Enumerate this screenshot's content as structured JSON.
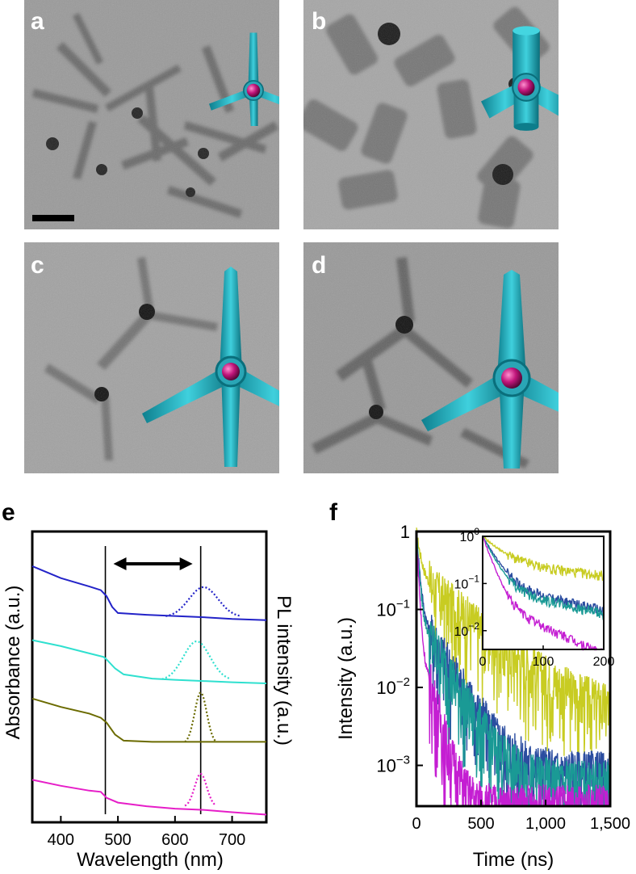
{
  "panel_labels": {
    "a": "a",
    "b": "b",
    "c": "c",
    "d": "d",
    "e": "e",
    "f": "f"
  },
  "colors": {
    "blue": "#2323c8",
    "cyan": "#2fe0cf",
    "olive": "#6b6b00",
    "magenta": "#e61ec8",
    "decay_yellow": "#c8cc22",
    "decay_teal": "#1a9a95",
    "decay_blue": "#2b4da0",
    "decay_magenta": "#c41ed2",
    "tetrapod": "#1fb5c5",
    "core": "#c0157a"
  },
  "icons": [
    "tetrapod-model-icon",
    "scale-bar-icon",
    "double-arrow-icon"
  ],
  "panel_e": {
    "ylabel_left": "Absorbance (a.u.)",
    "ylabel_right": "PL intensity (a.u.)",
    "xlabel": "Wavelength (nm)",
    "x_ticks": [
      "400",
      "500",
      "600",
      "700"
    ]
  },
  "panel_f": {
    "ylabel": "Intensity (a.u.)",
    "xlabel": "Time (ns)",
    "x_ticks": [
      "0",
      "500",
      "1,000",
      "1,500"
    ],
    "y_ticks": [
      {
        "base": "1",
        "exp": ""
      },
      {
        "base": "10",
        "exp": "−1"
      },
      {
        "base": "10",
        "exp": "−2"
      },
      {
        "base": "10",
        "exp": "−3"
      }
    ],
    "inset_x_ticks": [
      "0",
      "100",
      "200"
    ],
    "inset_y_ticks": [
      {
        "base": "10",
        "exp": "0"
      },
      {
        "base": "10",
        "exp": "−1"
      },
      {
        "base": "10",
        "exp": "−2"
      }
    ]
  },
  "chart_data": [
    {
      "type": "line",
      "xlabel": "Wavelength (nm)",
      "ylabel": "Absorbance (a.u.)",
      "ylabel_right": "PL intensity (a.u.)",
      "xlim": [
        350,
        760
      ],
      "x_ticks": [
        400,
        500,
        600,
        700
      ],
      "vertical_lines": [
        478,
        645
      ],
      "series_absorbance": [
        {
          "color": "blue",
          "offset": 3,
          "points": [
            [
              350,
              1.3
            ],
            [
              400,
              1.1
            ],
            [
              450,
              0.96
            ],
            [
              470,
              0.9
            ],
            [
              480,
              0.8
            ],
            [
              490,
              0.62
            ],
            [
              500,
              0.52
            ],
            [
              550,
              0.49
            ],
            [
              600,
              0.47
            ],
            [
              650,
              0.45
            ],
            [
              700,
              0.42
            ],
            [
              760,
              0.4
            ]
          ]
        },
        {
          "color": "cyan",
          "offset": 2,
          "points": [
            [
              350,
              1.12
            ],
            [
              400,
              1.02
            ],
            [
              450,
              0.9
            ],
            [
              475,
              0.84
            ],
            [
              480,
              0.8
            ],
            [
              495,
              0.65
            ],
            [
              510,
              0.55
            ],
            [
              560,
              0.48
            ],
            [
              600,
              0.46
            ],
            [
              650,
              0.44
            ],
            [
              700,
              0.42
            ],
            [
              760,
              0.4
            ]
          ]
        },
        {
          "color": "olive",
          "offset": 1,
          "points": [
            [
              350,
              1.2
            ],
            [
              400,
              1.06
            ],
            [
              450,
              0.95
            ],
            [
              470,
              0.88
            ],
            [
              480,
              0.8
            ],
            [
              495,
              0.6
            ],
            [
              510,
              0.5
            ],
            [
              560,
              0.48
            ],
            [
              650,
              0.48
            ],
            [
              760,
              0.48
            ]
          ]
        },
        {
          "color": "magenta",
          "offset": 0,
          "points": [
            [
              350,
              0.9
            ],
            [
              400,
              0.8
            ],
            [
              450,
              0.72
            ],
            [
              470,
              0.7
            ],
            [
              480,
              0.6
            ],
            [
              500,
              0.52
            ],
            [
              550,
              0.46
            ],
            [
              600,
              0.42
            ],
            [
              650,
              0.4
            ],
            [
              700,
              0.36
            ],
            [
              760,
              0.32
            ]
          ]
        }
      ],
      "series_pl": [
        {
          "color": "blue",
          "offset": 3,
          "peak_nm": 650,
          "fwhm_nm": 60,
          "amplitude": 0.5
        },
        {
          "color": "cyan",
          "offset": 2,
          "peak_nm": 638,
          "fwhm_nm": 55,
          "amplitude": 0.65
        },
        {
          "color": "olive",
          "offset": 1,
          "peak_nm": 645,
          "fwhm_nm": 25,
          "amplitude": 0.85
        },
        {
          "color": "magenta",
          "offset": 0,
          "peak_nm": 645,
          "fwhm_nm": 25,
          "amplitude": 0.55
        }
      ]
    },
    {
      "type": "line",
      "xlabel": "Time (ns)",
      "ylabel": "Intensity (a.u.)",
      "yscale": "log",
      "xlim": [
        0,
        1500
      ],
      "ylim": [
        0.0003,
        1
      ],
      "x_ticks": [
        0,
        500,
        1000,
        1500
      ],
      "series": [
        {
          "color": "decay_yellow",
          "tau_fast": 28,
          "tau_slow": 300,
          "a_fast": 0.72,
          "a_slow": 0.28,
          "floor": 0.004
        },
        {
          "color": "decay_blue",
          "tau_fast": 18,
          "tau_slow": 150,
          "a_fast": 0.9,
          "a_slow": 0.1,
          "floor": 0.0008
        },
        {
          "color": "decay_teal",
          "tau_fast": 16,
          "tau_slow": 140,
          "a_fast": 0.91,
          "a_slow": 0.09,
          "floor": 0.0006
        },
        {
          "color": "decay_magenta",
          "tau_fast": 12,
          "tau_slow": 70,
          "a_fast": 0.95,
          "a_slow": 0.05,
          "floor": 0.0003
        }
      ],
      "inset": {
        "xlim": [
          0,
          200
        ],
        "ylim": [
          0.004,
          1
        ],
        "x_ticks": [
          0,
          100,
          200
        ]
      }
    }
  ]
}
